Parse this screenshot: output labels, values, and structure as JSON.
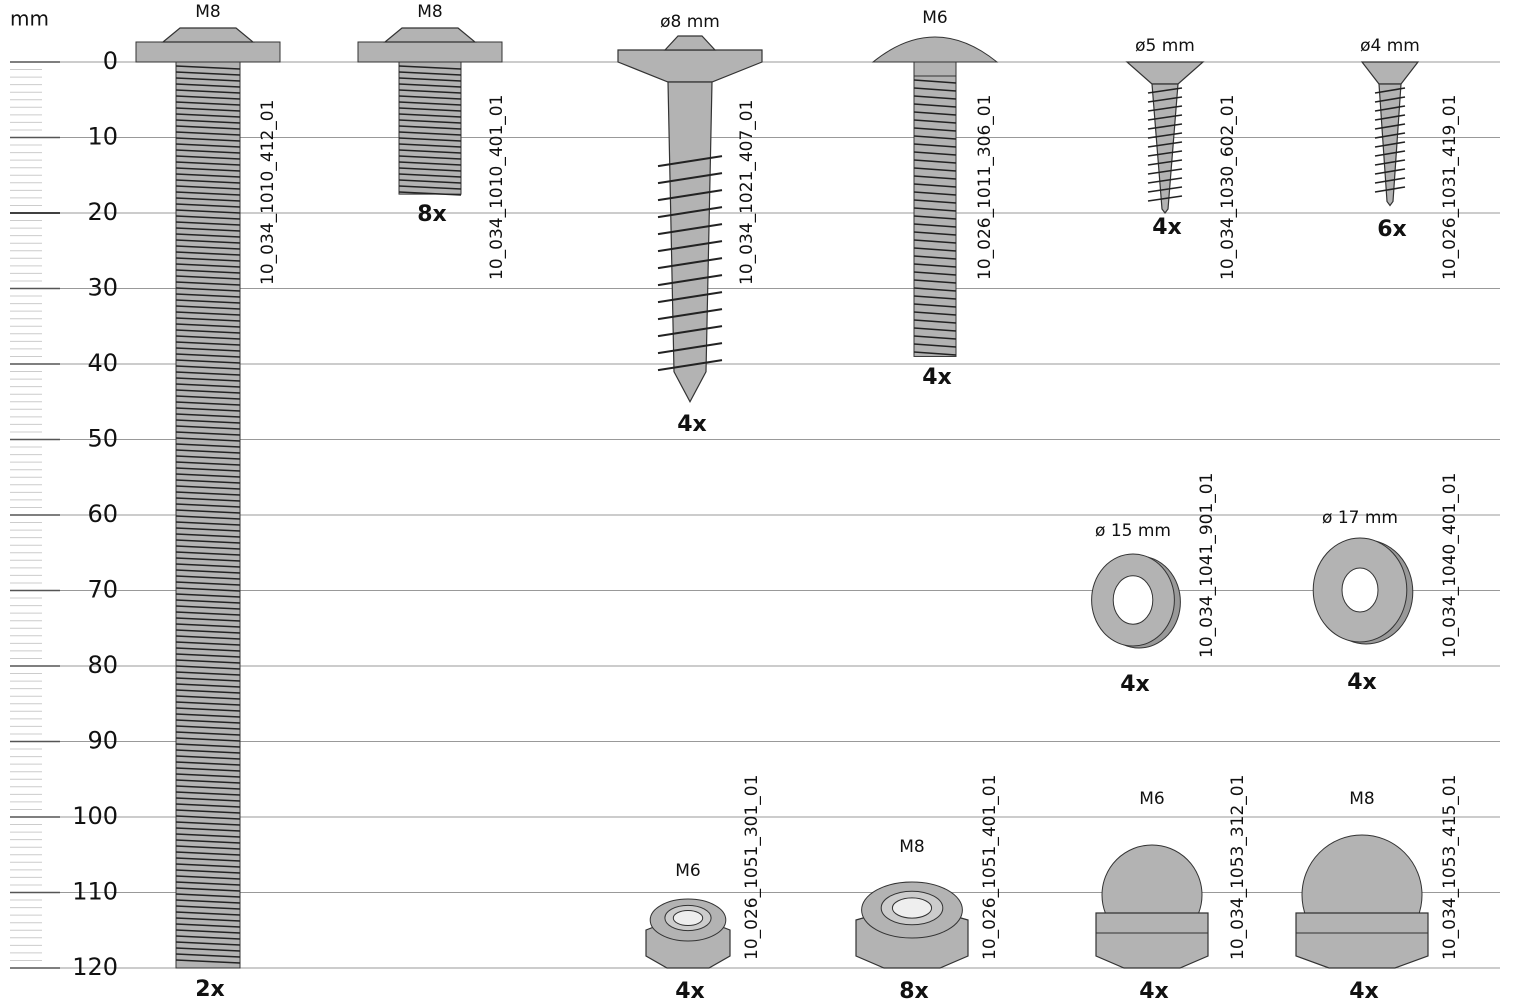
{
  "ruler": {
    "unit": "mm",
    "labels": [
      0,
      10,
      20,
      30,
      40,
      50,
      60,
      70,
      80,
      90,
      100,
      110,
      120
    ]
  },
  "parts": [
    {
      "size": "M8",
      "code": "10_034_1010_412_01",
      "qty": "2x"
    },
    {
      "size": "M8",
      "code": "10_034_1010_401_01",
      "qty": "8x"
    },
    {
      "size": "ø8 mm",
      "code": "10_034_1021_407_01",
      "qty": "4x"
    },
    {
      "size": "M6",
      "code": "10_026_1011_306_01",
      "qty": "4x"
    },
    {
      "size": "ø5 mm",
      "code": "10_034_1030_602_01",
      "qty": "4x"
    },
    {
      "size": "ø4 mm",
      "code": "10_026_1031_419_01",
      "qty": "6x"
    },
    {
      "size": "ø 15 mm",
      "code": "10_034_1041_901_01",
      "qty": "4x"
    },
    {
      "size": "ø 17 mm",
      "code": "10_034_1040_401_01",
      "qty": "4x"
    },
    {
      "size": "M6",
      "code": "10_026_1051_301_01",
      "qty": "4x"
    },
    {
      "size": "M8",
      "code": "10_026_1051_401_01",
      "qty": "8x"
    },
    {
      "size": "M6",
      "code": "10_034_1053_312_01",
      "qty": "4x"
    },
    {
      "size": "M8",
      "code": "10_034_1053_415_01",
      "qty": "4x"
    }
  ]
}
